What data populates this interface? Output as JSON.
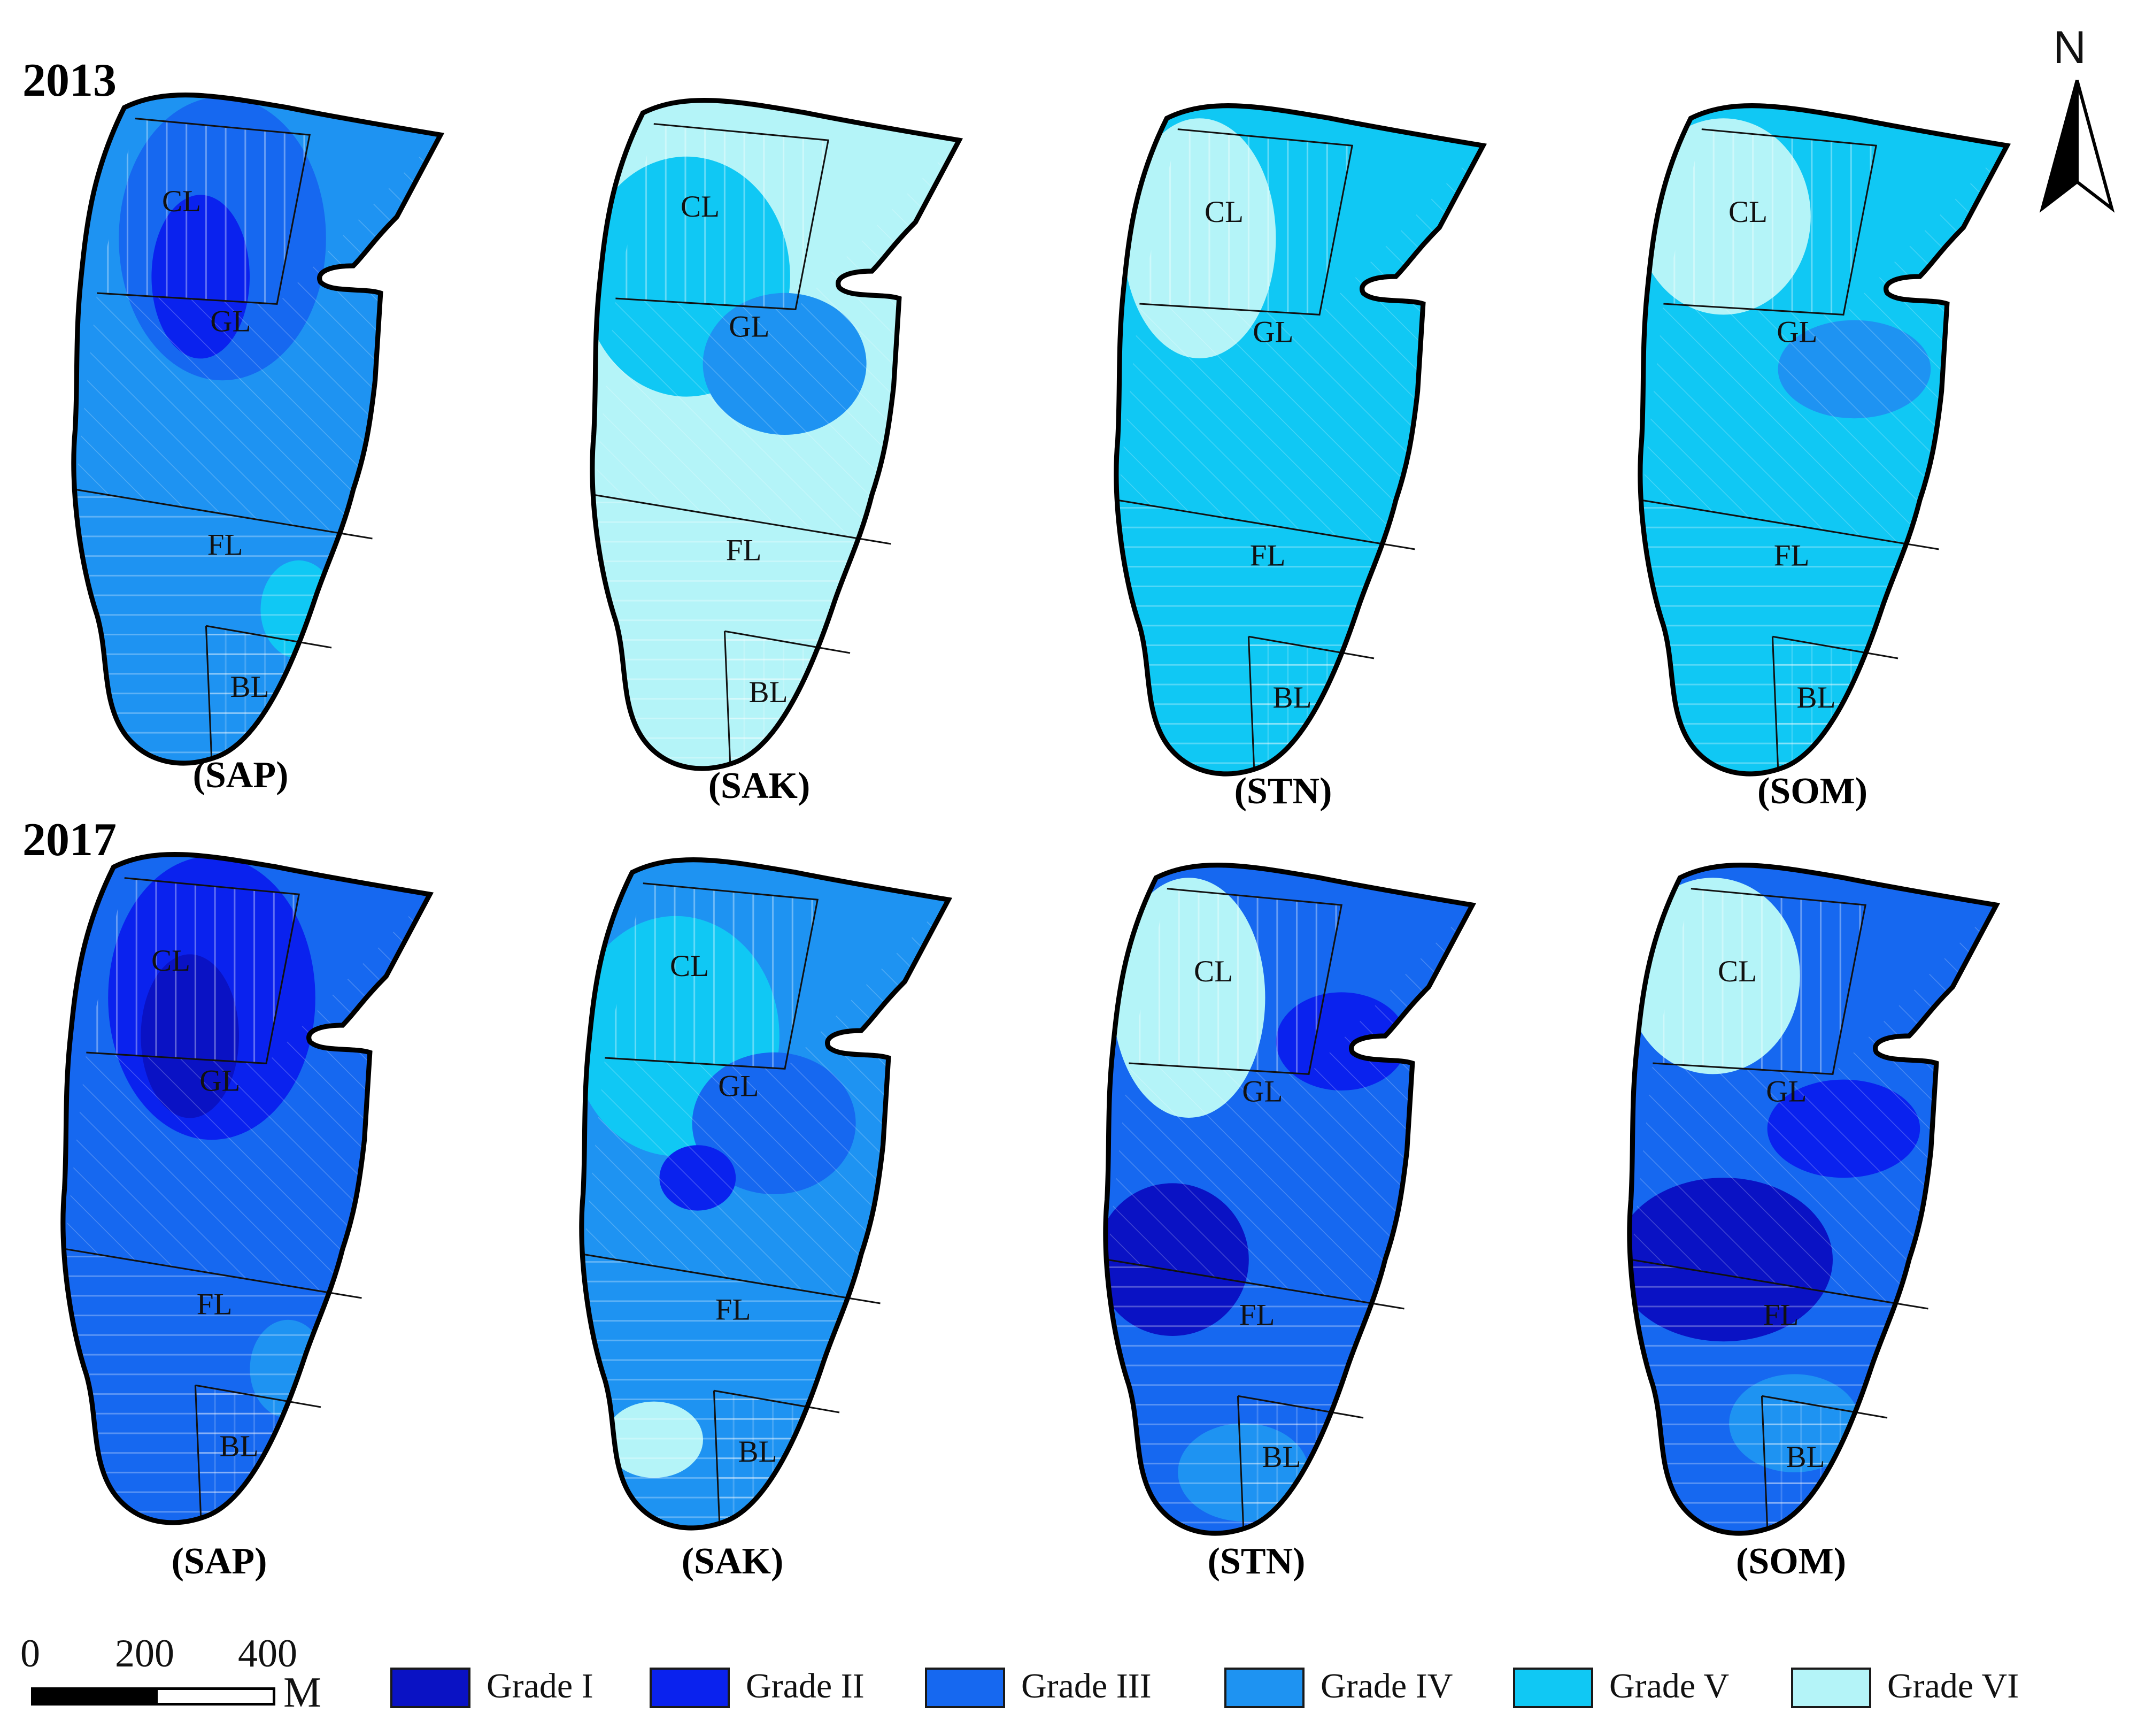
{
  "years": [
    "2013",
    "2017"
  ],
  "panels": {
    "2013": [
      {
        "indicator": "(SAP)",
        "base_grade": "Grade IV",
        "patches": [
          "Grade III",
          "Grade II",
          "Grade V"
        ]
      },
      {
        "indicator": "(SAK)",
        "base_grade": "Grade VI",
        "patches": [
          "Grade V",
          "Grade IV"
        ]
      },
      {
        "indicator": "(STN)",
        "base_grade": "Grade V",
        "patches": [
          "Grade VI"
        ]
      },
      {
        "indicator": "(SOM)",
        "base_grade": "Grade V",
        "patches": [
          "Grade VI",
          "Grade IV"
        ]
      }
    ],
    "2017": [
      {
        "indicator": "(SAP)",
        "base_grade": "Grade III",
        "patches": [
          "Grade II",
          "Grade I",
          "Grade IV"
        ]
      },
      {
        "indicator": "(SAK)",
        "base_grade": "Grade IV",
        "patches": [
          "Grade V",
          "Grade III",
          "Grade II",
          "Grade VI"
        ]
      },
      {
        "indicator": "(STN)",
        "base_grade": "Grade III",
        "patches": [
          "Grade VI",
          "Grade II",
          "Grade I",
          "Grade IV"
        ]
      },
      {
        "indicator": "(SOM)",
        "base_grade": "Grade III",
        "patches": [
          "Grade VI",
          "Grade II",
          "Grade I",
          "Grade IV"
        ]
      }
    ]
  },
  "zones": [
    "CL",
    "GL",
    "FL",
    "BL"
  ],
  "legend": [
    {
      "label": "Grade I",
      "color": "#0a12c4"
    },
    {
      "label": "Grade II",
      "color": "#0a22ee"
    },
    {
      "label": "Grade III",
      "color": "#1668f0"
    },
    {
      "label": "Grade IV",
      "color": "#1e93f2"
    },
    {
      "label": "Grade V",
      "color": "#10c8f4"
    },
    {
      "label": "Grade VI",
      "color": "#b4f4f8"
    }
  ],
  "scale_bar": {
    "ticks": [
      "0",
      "200",
      "400"
    ],
    "unit": "M"
  },
  "north_arrow": {
    "label": "N",
    "icon": "north-arrow-icon"
  }
}
